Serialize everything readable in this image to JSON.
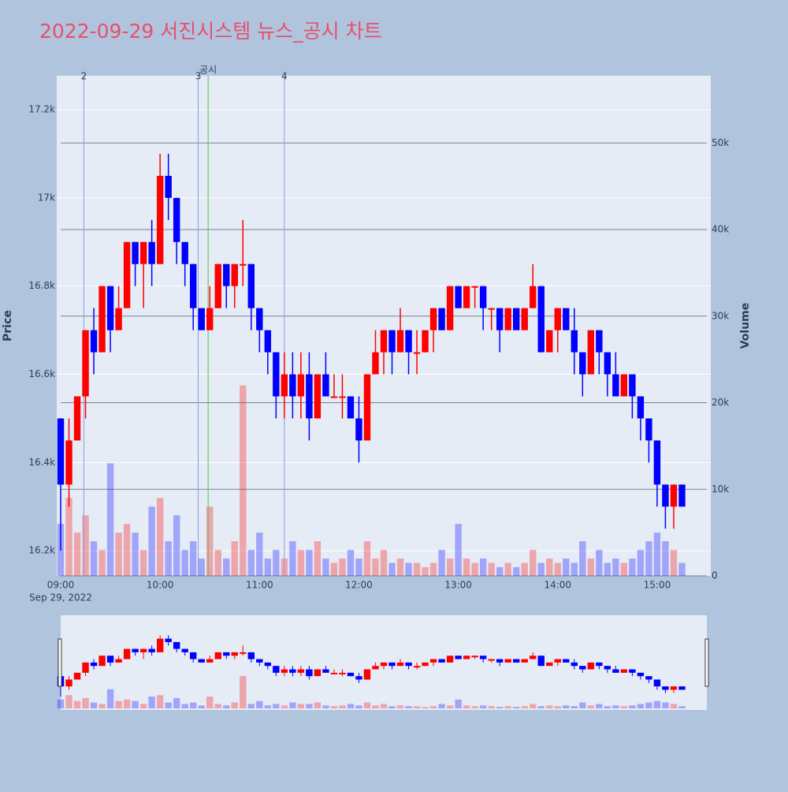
{
  "chart_data": {
    "type": "candlestick",
    "title": "2022-09-29 서진시스템 뉴스_공시 차트",
    "y_label": "Price",
    "y2_label": "Volume",
    "x_date_label": "Sep 29, 2022",
    "x": [
      "09:00",
      "09:05",
      "09:10",
      "09:15",
      "09:20",
      "09:25",
      "09:30",
      "09:35",
      "09:40",
      "09:45",
      "09:50",
      "09:55",
      "10:00",
      "10:05",
      "10:10",
      "10:15",
      "10:20",
      "10:25",
      "10:30",
      "10:35",
      "10:40",
      "10:45",
      "10:50",
      "10:55",
      "11:00",
      "11:05",
      "11:10",
      "11:15",
      "11:20",
      "11:25",
      "11:30",
      "11:35",
      "11:40",
      "11:45",
      "11:50",
      "11:55",
      "12:00",
      "12:05",
      "12:10",
      "12:15",
      "12:20",
      "12:25",
      "12:30",
      "12:35",
      "12:40",
      "12:45",
      "12:50",
      "12:55",
      "13:00",
      "13:05",
      "13:10",
      "13:15",
      "13:20",
      "13:25",
      "13:30",
      "13:35",
      "13:40",
      "13:45",
      "13:50",
      "13:55",
      "14:00",
      "14:05",
      "14:10",
      "14:15",
      "14:20",
      "14:25",
      "14:30",
      "14:35",
      "14:40",
      "14:45",
      "14:50",
      "14:55",
      "15:00",
      "15:05",
      "15:10",
      "15:15"
    ],
    "open": [
      16500,
      16350,
      16450,
      16550,
      16700,
      16650,
      16800,
      16700,
      16750,
      16900,
      16850,
      16900,
      16850,
      17050,
      17000,
      16900,
      16850,
      16750,
      16700,
      16750,
      16850,
      16800,
      16850,
      16850,
      16750,
      16700,
      16650,
      16550,
      16600,
      16550,
      16600,
      16500,
      16600,
      16550,
      16550,
      16550,
      16500,
      16450,
      16600,
      16650,
      16700,
      16650,
      16700,
      16650,
      16650,
      16700,
      16750,
      16700,
      16800,
      16750,
      16800,
      16800,
      16750,
      16750,
      16700,
      16750,
      16700,
      16750,
      16800,
      16650,
      16700,
      16750,
      16700,
      16650,
      16600,
      16700,
      16650,
      16600,
      16550,
      16600,
      16550,
      16500,
      16450,
      16350,
      16300,
      16350
    ],
    "high": [
      16500,
      16500,
      16550,
      16700,
      16750,
      16800,
      16800,
      16800,
      16900,
      16900,
      16900,
      16950,
      17100,
      17100,
      17000,
      16900,
      16850,
      16750,
      16800,
      16850,
      16850,
      16850,
      16950,
      16850,
      16750,
      16700,
      16650,
      16650,
      16650,
      16650,
      16650,
      16600,
      16650,
      16600,
      16600,
      16550,
      16550,
      16600,
      16700,
      16700,
      16700,
      16750,
      16700,
      16700,
      16700,
      16750,
      16750,
      16800,
      16800,
      16800,
      16800,
      16800,
      16750,
      16750,
      16750,
      16750,
      16750,
      16850,
      16800,
      16700,
      16750,
      16750,
      16750,
      16650,
      16700,
      16700,
      16650,
      16650,
      16600,
      16600,
      16550,
      16500,
      16450,
      16350,
      16350,
      16350
    ],
    "low": [
      16200,
      16300,
      16450,
      16500,
      16600,
      16650,
      16650,
      16700,
      16750,
      16800,
      16750,
      16800,
      16850,
      16950,
      16850,
      16800,
      16700,
      16700,
      16700,
      16750,
      16750,
      16750,
      16800,
      16700,
      16650,
      16600,
      16500,
      16500,
      16500,
      16500,
      16450,
      16500,
      16550,
      16550,
      16500,
      16500,
      16400,
      16450,
      16600,
      16600,
      16600,
      16650,
      16600,
      16600,
      16650,
      16650,
      16700,
      16700,
      16750,
      16750,
      16750,
      16700,
      16700,
      16650,
      16700,
      16700,
      16700,
      16750,
      16650,
      16650,
      16650,
      16700,
      16600,
      16550,
      16600,
      16600,
      16550,
      16550,
      16550,
      16500,
      16450,
      16400,
      16300,
      16250,
      16250,
      16300
    ],
    "close": [
      16350,
      16450,
      16550,
      16700,
      16650,
      16800,
      16700,
      16750,
      16900,
      16850,
      16900,
      16850,
      17050,
      17000,
      16900,
      16850,
      16750,
      16700,
      16750,
      16850,
      16800,
      16850,
      16850,
      16750,
      16700,
      16650,
      16550,
      16600,
      16550,
      16600,
      16500,
      16600,
      16550,
      16550,
      16550,
      16500,
      16450,
      16600,
      16650,
      16700,
      16650,
      16700,
      16650,
      16650,
      16700,
      16750,
      16700,
      16800,
      16750,
      16800,
      16800,
      16750,
      16750,
      16700,
      16750,
      16700,
      16750,
      16800,
      16650,
      16700,
      16750,
      16700,
      16650,
      16600,
      16700,
      16650,
      16600,
      16550,
      16600,
      16550,
      16500,
      16450,
      16350,
      16300,
      16350,
      16300
    ],
    "volume": [
      6000,
      9000,
      5000,
      7000,
      4000,
      3000,
      13000,
      5000,
      6000,
      5000,
      3000,
      8000,
      9000,
      4000,
      7000,
      3000,
      4000,
      2000,
      8000,
      3000,
      2000,
      4000,
      22000,
      3000,
      5000,
      2000,
      3000,
      2000,
      4000,
      3000,
      3000,
      4000,
      2000,
      1500,
      2000,
      3000,
      2000,
      4000,
      2000,
      3000,
      1500,
      2000,
      1500,
      1500,
      1000,
      1500,
      3000,
      2000,
      6000,
      2000,
      1500,
      2000,
      1500,
      1000,
      1500,
      1000,
      1500,
      3000,
      1500,
      2000,
      1500,
      2000,
      1500,
      4000,
      2000,
      3000,
      1500,
      2000,
      1500,
      2000,
      3000,
      4000,
      5000,
      4000,
      3000,
      1500
    ],
    "up_color": "#ff0000",
    "down_color": "#0000ff",
    "xlim": [
      "09:00",
      "15:30"
    ],
    "xticks": [
      "09:00",
      "10:00",
      "11:00",
      "12:00",
      "13:00",
      "14:00",
      "15:00"
    ],
    "ylim": [
      16143,
      17277
    ],
    "yticks": [
      {
        "value": 16200,
        "label": "16.2k"
      },
      {
        "value": 16400,
        "label": "16.4k"
      },
      {
        "value": 16600,
        "label": "16.6k"
      },
      {
        "value": 16800,
        "label": "16.8k"
      },
      {
        "value": 17000,
        "label": "17k"
      },
      {
        "value": 17200,
        "label": "17.2k"
      }
    ],
    "y2lim": [
      0,
      57770
    ],
    "y2ticks": [
      0,
      {
        "value": 10000,
        "label": "10k"
      },
      {
        "value": 20000,
        "label": "20k"
      },
      {
        "value": 30000,
        "label": "30k"
      },
      {
        "value": 40000,
        "label": "40k"
      },
      {
        "value": 50000,
        "label": "50k"
      }
    ],
    "events": [
      {
        "x": "09:14",
        "label": "2",
        "color": "#8a9ae8"
      },
      {
        "x": "10:23",
        "label": "3",
        "color": "#8a9ae8"
      },
      {
        "x": "10:29",
        "label": "공시",
        "color": "#5cb85c"
      },
      {
        "x": "11:15",
        "label": "4",
        "color": "#8a9ae8"
      }
    ],
    "grid": true
  }
}
